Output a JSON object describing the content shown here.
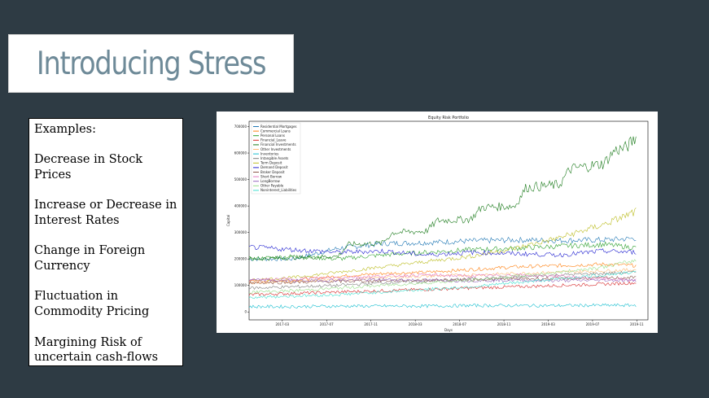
{
  "slide": {
    "title": "Introducing Stress",
    "examples": [
      "Examples:",
      "Decrease in Stock Prices",
      "Increase or Decrease in Interest Rates",
      "Change in Foreign Currency",
      "Fluctuation in Commodity Pricing",
      "Margining Risk of uncertain cash-flows"
    ]
  },
  "colors": {
    "background": "#2e3b44",
    "title_text": "#6e8a98"
  },
  "chart_data": {
    "type": "line",
    "title": "Equity Risk Portfolio",
    "xlabel": "Days",
    "ylabel": "Capital",
    "x_ticks": [
      "2017-03",
      "2017-07",
      "2017-11",
      "2018-03",
      "2018-07",
      "2018-11",
      "2019-03",
      "2019-07",
      "2019-11"
    ],
    "y_ticks": [
      "0",
      "100000",
      "200000",
      "300000",
      "400000",
      "500000",
      "600000",
      "700000"
    ],
    "ylim": [
      -30000,
      720000
    ],
    "xlim": [
      "2016-12",
      "2019-12"
    ],
    "grid": false,
    "legend_position": "top-left",
    "series": [
      {
        "name": "Residential Mortgages",
        "color": "#1f77b4",
        "values": [
          [
            0,
            200000
          ],
          [
            4,
            200000
          ],
          [
            8,
            240000
          ],
          [
            12,
            258000
          ],
          [
            16,
            262000
          ],
          [
            20,
            268000
          ],
          [
            24,
            272000
          ],
          [
            28,
            270000
          ],
          [
            32,
            272000
          ],
          [
            35,
            278000
          ]
        ]
      },
      {
        "name": "Commercial Loans",
        "color": "#ff7f0e",
        "values": [
          [
            0,
            115000
          ],
          [
            4,
            120000
          ],
          [
            8,
            135000
          ],
          [
            12,
            145000
          ],
          [
            16,
            150000
          ],
          [
            20,
            160000
          ],
          [
            24,
            170000
          ],
          [
            28,
            175000
          ],
          [
            32,
            180000
          ],
          [
            35,
            175000
          ]
        ]
      },
      {
        "name": "Personal Loans",
        "color": "#2ca02c",
        "values": [
          [
            0,
            200000
          ],
          [
            4,
            210000
          ],
          [
            8,
            200000
          ],
          [
            12,
            215000
          ],
          [
            16,
            225000
          ],
          [
            20,
            235000
          ],
          [
            24,
            240000
          ],
          [
            28,
            248000
          ],
          [
            32,
            255000
          ],
          [
            35,
            242000
          ]
        ]
      },
      {
        "name": "Financial_Leave",
        "color": "#d62728",
        "values": [
          [
            0,
            65000
          ],
          [
            4,
            70000
          ],
          [
            8,
            75000
          ],
          [
            12,
            80000
          ],
          [
            16,
            85000
          ],
          [
            20,
            90000
          ],
          [
            24,
            95000
          ],
          [
            28,
            100000
          ],
          [
            32,
            105000
          ],
          [
            35,
            110000
          ]
        ]
      },
      {
        "name": "Financial Investments",
        "color": "#1a7a1a",
        "values": [
          [
            0,
            200000
          ],
          [
            4,
            205000
          ],
          [
            8,
            210000
          ],
          [
            9,
            255000
          ],
          [
            12,
            260000
          ],
          [
            13,
            300000
          ],
          [
            16,
            305000
          ],
          [
            17,
            345000
          ],
          [
            20,
            350000
          ],
          [
            21,
            395000
          ],
          [
            24,
            400000
          ],
          [
            25,
            470000
          ],
          [
            28,
            480000
          ],
          [
            29,
            540000
          ],
          [
            32,
            560000
          ],
          [
            33,
            610000
          ],
          [
            34,
            620000
          ],
          [
            35,
            660000
          ]
        ]
      },
      {
        "name": "Other Investments",
        "color": "#ffbb78",
        "values": [
          [
            0,
            110000
          ],
          [
            4,
            115000
          ],
          [
            8,
            120000
          ],
          [
            12,
            130000
          ],
          [
            16,
            135000
          ],
          [
            20,
            140000
          ],
          [
            24,
            145000
          ],
          [
            28,
            150000
          ],
          [
            32,
            155000
          ],
          [
            35,
            160000
          ]
        ]
      },
      {
        "name": "Inventories",
        "color": "#17becf",
        "values": [
          [
            0,
            20000
          ],
          [
            4,
            20000
          ],
          [
            8,
            22000
          ],
          [
            12,
            22000
          ],
          [
            16,
            22000
          ],
          [
            20,
            24000
          ],
          [
            24,
            24000
          ],
          [
            28,
            24000
          ],
          [
            32,
            25000
          ],
          [
            35,
            25000
          ]
        ]
      },
      {
        "name": "Intangible Assets",
        "color": "#7f7f7f",
        "values": [
          [
            0,
            90000
          ],
          [
            4,
            95000
          ],
          [
            8,
            100000
          ],
          [
            12,
            110000
          ],
          [
            16,
            115000
          ],
          [
            20,
            125000
          ],
          [
            24,
            130000
          ],
          [
            28,
            140000
          ],
          [
            32,
            145000
          ],
          [
            35,
            150000
          ]
        ]
      },
      {
        "name": "Term Deposit",
        "color": "#bcbd22",
        "values": [
          [
            0,
            120000
          ],
          [
            4,
            130000
          ],
          [
            8,
            150000
          ],
          [
            12,
            170000
          ],
          [
            16,
            190000
          ],
          [
            20,
            210000
          ],
          [
            24,
            240000
          ],
          [
            28,
            280000
          ],
          [
            32,
            330000
          ],
          [
            35,
            380000
          ]
        ]
      },
      {
        "name": "Demand Deposit",
        "color": "#2020d0",
        "values": [
          [
            0,
            245000
          ],
          [
            4,
            235000
          ],
          [
            8,
            225000
          ],
          [
            12,
            230000
          ],
          [
            16,
            215000
          ],
          [
            20,
            225000
          ],
          [
            24,
            220000
          ],
          [
            28,
            215000
          ],
          [
            32,
            230000
          ],
          [
            35,
            225000
          ]
        ]
      },
      {
        "name": "Broker Deposit",
        "color": "#8c564b",
        "values": [
          [
            0,
            110000
          ],
          [
            4,
            112000
          ],
          [
            8,
            115000
          ],
          [
            12,
            118000
          ],
          [
            16,
            120000
          ],
          [
            20,
            122000
          ],
          [
            24,
            125000
          ],
          [
            28,
            126000
          ],
          [
            32,
            128000
          ],
          [
            35,
            130000
          ]
        ]
      },
      {
        "name": "Short Borrow",
        "color": "#e377c2",
        "values": [
          [
            0,
            120000
          ],
          [
            4,
            125000
          ],
          [
            8,
            130000
          ],
          [
            12,
            135000
          ],
          [
            16,
            140000
          ],
          [
            20,
            135000
          ],
          [
            24,
            140000
          ],
          [
            28,
            135000
          ],
          [
            32,
            125000
          ],
          [
            35,
            120000
          ]
        ]
      },
      {
        "name": "LongBorrow",
        "color": "#9467bd",
        "values": [
          [
            0,
            120000
          ],
          [
            4,
            118000
          ],
          [
            8,
            120000
          ],
          [
            12,
            122000
          ],
          [
            16,
            120000
          ],
          [
            20,
            118000
          ],
          [
            24,
            120000
          ],
          [
            28,
            118000
          ],
          [
            32,
            120000
          ],
          [
            35,
            118000
          ]
        ]
      },
      {
        "name": "Other Payable",
        "color": "#98df8a",
        "values": [
          [
            0,
            75000
          ],
          [
            4,
            80000
          ],
          [
            8,
            90000
          ],
          [
            12,
            100000
          ],
          [
            16,
            110000
          ],
          [
            20,
            120000
          ],
          [
            24,
            135000
          ],
          [
            28,
            150000
          ],
          [
            32,
            170000
          ],
          [
            35,
            195000
          ]
        ]
      },
      {
        "name": "Noninterest_Liabilities",
        "color": "#40e0d0",
        "values": [
          [
            0,
            55000
          ],
          [
            4,
            60000
          ],
          [
            8,
            65000
          ],
          [
            12,
            75000
          ],
          [
            16,
            85000
          ],
          [
            20,
            95000
          ],
          [
            24,
            110000
          ],
          [
            28,
            125000
          ],
          [
            32,
            140000
          ],
          [
            35,
            150000
          ]
        ]
      }
    ]
  }
}
